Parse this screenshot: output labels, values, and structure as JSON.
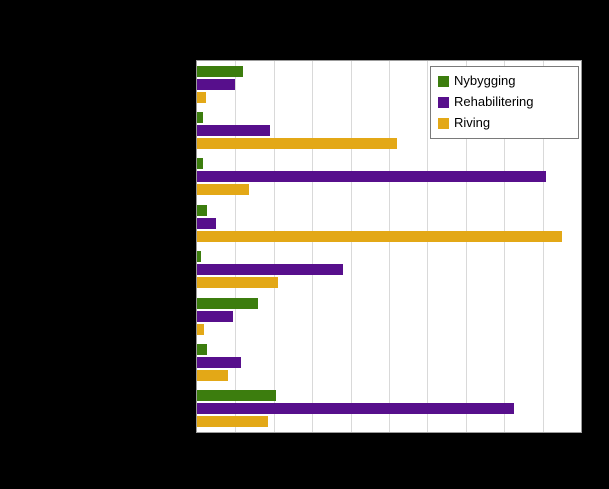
{
  "chart_data": {
    "type": "bar",
    "orientation": "horizontal",
    "title": "",
    "xlabel": "",
    "ylabel": "",
    "xlim": [
      0,
      100
    ],
    "gridline_intervals": 10,
    "grid": true,
    "legend_position": "top-right",
    "categories": [
      "",
      "",
      "",
      "",
      "",
      "",
      "",
      ""
    ],
    "series": [
      {
        "name": "Nybygging",
        "color": "#3c7d0e",
        "values": [
          12,
          1.5,
          1.5,
          2.5,
          1,
          16,
          2.5,
          20.5
        ]
      },
      {
        "name": "Rehabilitering",
        "color": "#570f8c",
        "values": [
          10,
          19,
          91,
          5,
          38,
          9.5,
          11.5,
          82.5
        ]
      },
      {
        "name": "Riving",
        "color": "#e3a817",
        "values": [
          2.3,
          52,
          13.5,
          95,
          21,
          1.8,
          8,
          18.5
        ]
      }
    ]
  },
  "colors": {
    "page_background": "#000000",
    "plot_background": "#ffffff",
    "gridline": "#d9d9d9",
    "plot_border": "#9b9b9b",
    "legend_border": "#7a7a7a"
  },
  "legend": {
    "items": [
      "Nybygging",
      "Rehabilitering",
      "Riving"
    ]
  }
}
